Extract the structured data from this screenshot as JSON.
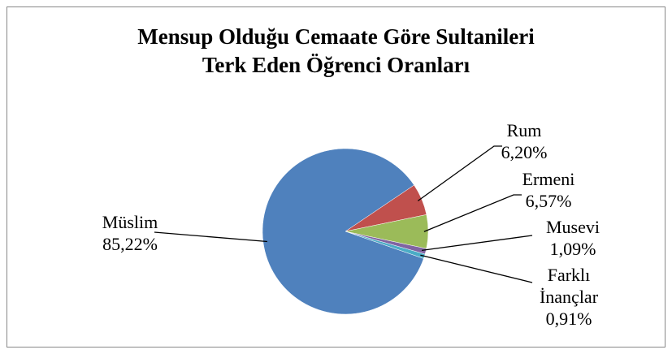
{
  "chart_data": {
    "type": "pie",
    "title": "Mensup Olduğu Cemaate Göre Sultanileri Terk Eden Öğrenci Oranları",
    "categories": [
      "Müslim",
      "Rum",
      "Ermeni",
      "Musevi",
      "Farklı İnançlar"
    ],
    "values": [
      85.22,
      6.2,
      6.57,
      1.09,
      0.91
    ],
    "value_labels": [
      "85,22%",
      "6,20%",
      "6,57%",
      "1,09%",
      "0,91%"
    ],
    "colors": [
      "#4f81bd",
      "#c0504d",
      "#9bbb59",
      "#8064a2",
      "#4bacc6"
    ]
  }
}
